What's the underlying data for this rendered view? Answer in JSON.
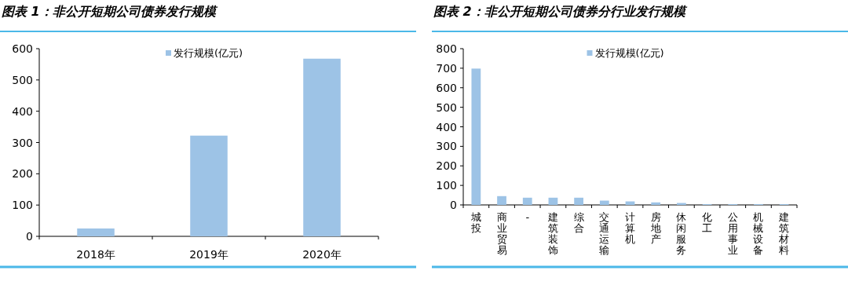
{
  "chart_data": [
    {
      "type": "bar",
      "title": "图表 1：非公开短期公司债券发行规模",
      "categories": [
        "2018年",
        "2019年",
        "2020年"
      ],
      "series": [
        {
          "name": "发行规模(亿元)",
          "color": "#9dc3e6",
          "values": [
            25,
            322,
            568
          ]
        }
      ],
      "ylim": [
        0,
        600
      ],
      "yticks": [
        0,
        100,
        200,
        300,
        400,
        500,
        600
      ],
      "legend": "top"
    },
    {
      "type": "bar",
      "title": "图表 2：非公开短期公司债券分行业发行规模",
      "categories": [
        "城投",
        "商业贸易",
        "-",
        "建筑装饰",
        "综合",
        "交通运输",
        "计算机",
        "房地产",
        "休闲服务",
        "化工",
        "公用事业",
        "机械设备",
        "建筑材料"
      ],
      "series": [
        {
          "name": "发行规模(亿元)",
          "color": "#9dc3e6",
          "values": [
            698,
            45,
            37,
            37,
            37,
            22,
            18,
            13,
            10,
            4,
            4,
            4,
            4
          ]
        }
      ],
      "ylim": [
        0,
        800
      ],
      "yticks": [
        0,
        100,
        200,
        300,
        400,
        500,
        600,
        700,
        800
      ],
      "legend": "top"
    }
  ]
}
